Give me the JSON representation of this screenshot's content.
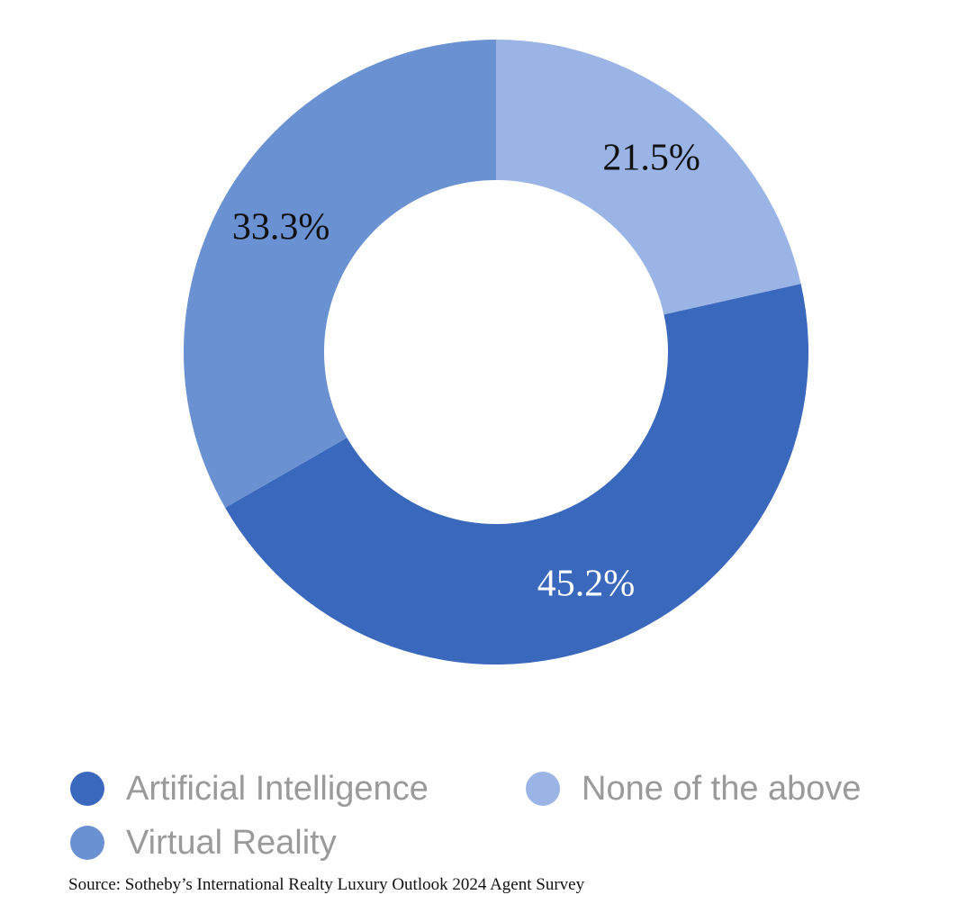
{
  "chart_data": {
    "type": "pie",
    "title": "",
    "slices": [
      {
        "label": "None of the above",
        "value": 21.5,
        "display": "21.5%",
        "color": "#99b4e5",
        "label_color": "#111111"
      },
      {
        "label": "Artificial Intelligence",
        "value": 45.2,
        "display": "45.2%",
        "color": "#3a68bc",
        "label_color": "#ffffff"
      },
      {
        "label": "Virtual Reality",
        "value": 33.3,
        "display": "33.3%",
        "color": "#6a91d1",
        "label_color": "#111111"
      }
    ],
    "donut": true,
    "start_angle_deg": 0,
    "direction": "clockwise",
    "legend": {
      "placement": "bottom",
      "entries": [
        {
          "label": "Artificial Intelligence",
          "color": "#3a68bc"
        },
        {
          "label": "None of the above",
          "color": "#99b4e5"
        },
        {
          "label": "Virtual Reality",
          "color": "#6a91d1"
        }
      ]
    }
  },
  "source_note": "Source: Sotheby’s International Realty Luxury Outlook 2024 Agent Survey"
}
